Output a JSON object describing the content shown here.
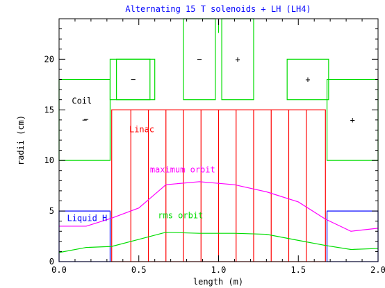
{
  "chart_data": {
    "type": "line",
    "title": "Alternating 15 T solenoids + LH (LH4)",
    "xlabel": "length    (m)",
    "ylabel": "radii    (cm)",
    "xlim": [
      0,
      2
    ],
    "ylim": [
      0,
      24
    ],
    "xticks": [
      0.0,
      0.5,
      1.0,
      1.5,
      2.0
    ],
    "xtick_labels": [
      "0.0",
      "0.5",
      "1.0",
      "1.5",
      "2.0"
    ],
    "yticks": [
      0,
      5,
      10,
      15,
      20
    ],
    "ytick_labels": [
      "0",
      "5",
      "10",
      "15",
      "20"
    ],
    "grid": false,
    "colors": {
      "coil": "#00dd00",
      "linac": "#ff0000",
      "liquid_h": "#0000ff",
      "maximum_orbit": "#ff00ff",
      "rms_orbit": "#00dd00",
      "title": "#0000ff",
      "axes": "#000000"
    },
    "series": [
      {
        "name": "maximum orbit",
        "x": [
          0.0,
          0.17,
          0.33,
          0.5,
          0.67,
          0.88,
          1.1,
          1.3,
          1.5,
          1.67,
          1.83,
          2.0
        ],
        "values": [
          3.5,
          3.5,
          4.3,
          5.3,
          7.6,
          7.9,
          7.6,
          6.9,
          5.9,
          4.2,
          3.0,
          3.3
        ]
      },
      {
        "name": "rms orbit",
        "x": [
          0.0,
          0.17,
          0.33,
          0.5,
          0.67,
          0.88,
          1.1,
          1.3,
          1.5,
          1.67,
          1.83,
          2.0
        ],
        "values": [
          0.9,
          1.4,
          1.5,
          2.2,
          2.9,
          2.8,
          2.8,
          2.7,
          2.1,
          1.6,
          1.2,
          1.3
        ]
      }
    ],
    "coils": [
      {
        "x": [
          0.0,
          0.32
        ],
        "r": [
          10,
          18
        ],
        "sign": "−"
      },
      {
        "x": [
          0.32,
          0.6
        ],
        "r": [
          16,
          20
        ],
        "sign": ""
      },
      {
        "x": [
          0.36,
          0.57
        ],
        "r": [
          16,
          20
        ],
        "sign": "−"
      },
      {
        "x": [
          0.78,
          0.98
        ],
        "r": [
          16,
          24
        ],
        "sign": "−"
      },
      {
        "x": [
          1.02,
          1.22
        ],
        "r": [
          16,
          24
        ],
        "sign": "+"
      },
      {
        "x": [
          1.43,
          1.69
        ],
        "r": [
          16,
          20
        ],
        "sign": "+"
      },
      {
        "x": [
          1.68,
          2.0
        ],
        "r": [
          10,
          18
        ],
        "sign": "+"
      }
    ],
    "coil_divider_x": 1.0,
    "linac": {
      "x": [
        0.33,
        1.67
      ],
      "r": [
        0,
        15
      ],
      "cell_boundaries": [
        0.45,
        0.56,
        0.67,
        0.78,
        0.89,
        1.0,
        1.11,
        1.22,
        1.33,
        1.44,
        1.55
      ]
    },
    "liquid_h": [
      {
        "x": [
          0.0,
          0.32
        ],
        "r": [
          0,
          5
        ]
      },
      {
        "x": [
          1.68,
          2.0
        ],
        "r": [
          0,
          5
        ]
      }
    ],
    "annotations": {
      "coil": {
        "text": "Coil",
        "x": 0.08,
        "y": 15.6
      },
      "coil_sign": {
        "text": "−",
        "x": 0.17,
        "y": 13.8
      },
      "linac": {
        "text": "Linac",
        "x": 0.44,
        "y": 12.8
      },
      "maximum_orbit": {
        "text": "maximum orbit",
        "x": 0.57,
        "y": 8.8
      },
      "rms_orbit": {
        "text": "rms orbit",
        "x": 0.62,
        "y": 4.3
      },
      "liquid_h": {
        "text": "Liquid H",
        "x": 0.05,
        "y": 4.0
      }
    }
  }
}
